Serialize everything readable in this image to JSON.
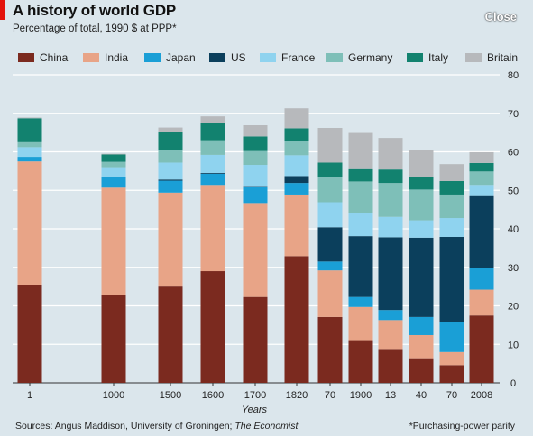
{
  "header": {
    "title": "A history of world GDP",
    "subtitle": "Percentage of total, 1990 $ at PPP*",
    "close_label": "Close"
  },
  "footer": {
    "sources_prefix": "Sources: Angus Maddison, University of Groningen; ",
    "sources_italic": "The Economist",
    "note": "*Purchasing-power parity"
  },
  "colors": {
    "China": "#7b2a1f",
    "India": "#e8a487",
    "Japan": "#1a9fd6",
    "US": "#0b3f5c",
    "France": "#8fd3ef",
    "Germany": "#7ebfb8",
    "Italy": "#12826f",
    "Britain": "#b7b9bc"
  },
  "chart_data": {
    "type": "bar",
    "stacked": true,
    "title": "A history of world GDP",
    "subtitle": "Percentage of total, 1990 $ at PPP*",
    "xlabel": "Years",
    "ylabel": "",
    "ylim": [
      0,
      80
    ],
    "yticks": [
      0,
      10,
      20,
      30,
      40,
      50,
      60,
      70,
      80
    ],
    "y_axis_side": "right",
    "grid": true,
    "legend_position": "top",
    "categories": [
      "1",
      "1000",
      "1500",
      "1600",
      "1700",
      "1820",
      "70",
      "1900",
      "13",
      "40",
      "70",
      "2008"
    ],
    "series": [
      {
        "name": "China",
        "values": [
          25.5,
          22.7,
          25.0,
          29.0,
          22.3,
          32.9,
          17.1,
          11.1,
          8.8,
          6.4,
          4.6,
          17.5
        ]
      },
      {
        "name": "India",
        "values": [
          32.0,
          28.0,
          24.4,
          22.4,
          24.4,
          16.0,
          12.1,
          8.6,
          7.5,
          6.0,
          3.4,
          6.7
        ]
      },
      {
        "name": "Japan",
        "values": [
          1.2,
          2.7,
          3.1,
          2.9,
          4.1,
          3.0,
          2.3,
          2.6,
          2.6,
          4.7,
          7.8,
          5.7
        ]
      },
      {
        "name": "US",
        "values": [
          0.0,
          0.0,
          0.3,
          0.2,
          0.1,
          1.8,
          8.9,
          15.8,
          18.9,
          20.6,
          22.1,
          18.6
        ]
      },
      {
        "name": "France",
        "values": [
          2.5,
          2.6,
          4.4,
          4.7,
          5.7,
          5.4,
          6.5,
          6.0,
          5.3,
          4.5,
          4.9,
          2.9
        ]
      },
      {
        "name": "Germany",
        "values": [
          1.3,
          1.4,
          3.3,
          3.8,
          3.6,
          3.8,
          6.5,
          8.2,
          8.8,
          8.0,
          6.1,
          3.5
        ]
      },
      {
        "name": "Italy",
        "values": [
          6.2,
          1.9,
          4.7,
          4.4,
          3.8,
          3.2,
          3.8,
          3.2,
          3.5,
          3.3,
          3.5,
          2.2
        ]
      },
      {
        "name": "Britain",
        "values": [
          0.2,
          0.2,
          1.1,
          1.8,
          2.9,
          5.2,
          9.0,
          9.4,
          8.2,
          6.9,
          4.4,
          2.8
        ]
      }
    ]
  }
}
